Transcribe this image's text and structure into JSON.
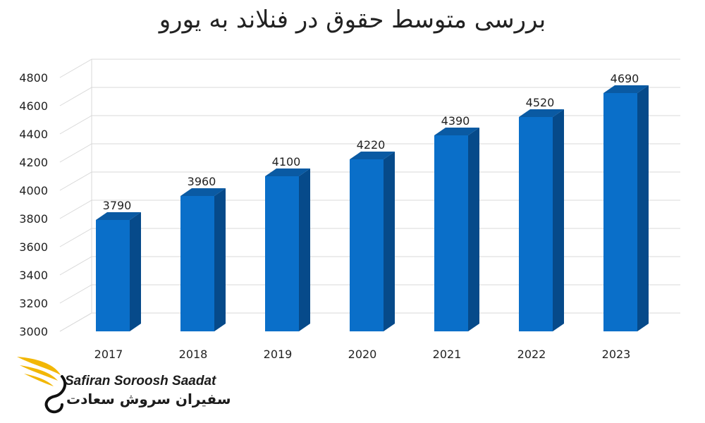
{
  "chart_data": {
    "type": "bar",
    "title": "بررسی متوسط حقوق در فنلاند به یورو",
    "xlabel": "",
    "ylabel": "",
    "categories": [
      "2017",
      "2018",
      "2019",
      "2020",
      "2021",
      "2022",
      "2023"
    ],
    "values": [
      3790,
      3960,
      4100,
      4220,
      4390,
      4520,
      4690
    ],
    "data_labels": [
      "3790",
      "3960",
      "4100",
      "4220",
      "4390",
      "4520",
      "4690"
    ],
    "ylim": [
      3000,
      4800
    ],
    "yticks": [
      "3000",
      "3200",
      "3400",
      "3600",
      "3800",
      "4000",
      "4200",
      "4400",
      "4600",
      "4800"
    ],
    "grid": true,
    "legend": "none",
    "bar_color": "#0a6fc9",
    "bar_side_color": "#064a8a",
    "bar_top_color": "#0a5aa3"
  },
  "logo": {
    "text_en": "Safiran Soroosh Saadat",
    "text_fa": "سفیران سروش سعادت",
    "accent": "#f2b705"
  }
}
